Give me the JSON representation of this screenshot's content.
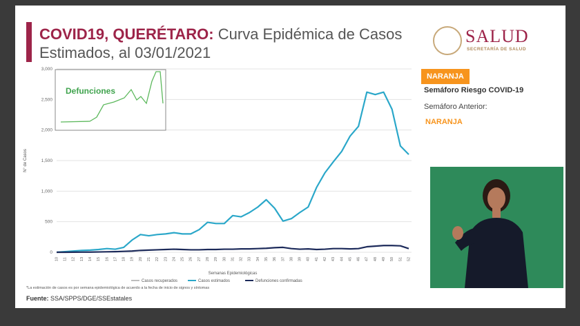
{
  "header": {
    "title_bold": "COVID19, QUERÉTARO:",
    "title_rest": "Curva Epidémica de Casos Estimados, al 03/01/2021",
    "logo_text": "SALUD",
    "logo_sub": "SECRETARÍA DE SALUD"
  },
  "semaforo": {
    "badge": "NARANJA",
    "label": "Semáforo Riesgo COVID-19",
    "previous_label": "Semáforo Anterior:",
    "previous": "NARANJA"
  },
  "chart_data": {
    "type": "line",
    "ylabel": "N° de Casos",
    "xlabel": "Semanas Epidemiológicas",
    "inset_title": "Defunciones",
    "note": "*La estimación de casos es por semana epidemiológica de acuerdo a la fecha de inicio de signos y síntomas",
    "categories": [
      "10",
      "11",
      "12",
      "13",
      "14",
      "15",
      "16",
      "17",
      "18",
      "19",
      "20",
      "21",
      "22",
      "23",
      "24",
      "25",
      "26",
      "27",
      "28",
      "29",
      "30",
      "31",
      "32",
      "33",
      "34",
      "35",
      "36",
      "37",
      "38",
      "39",
      "40",
      "41",
      "42",
      "43",
      "44",
      "45",
      "46",
      "47",
      "48",
      "49",
      "50",
      "51",
      "52"
    ],
    "series": [
      {
        "name": "Casos recuperados",
        "color": "#bdbdbd",
        "values": [
          null,
          null,
          null,
          null,
          null,
          null,
          null,
          null,
          null,
          null,
          null,
          null,
          null,
          null,
          null,
          null,
          null,
          null,
          null,
          null,
          null,
          null,
          null,
          null,
          null,
          null,
          null,
          null,
          null,
          null,
          null,
          null,
          null,
          null,
          null,
          null,
          null,
          null,
          null,
          null,
          null,
          null,
          null
        ]
      },
      {
        "name": "Casos estimados",
        "color": "#2aa7c9",
        "values": [
          0,
          10,
          20,
          30,
          35,
          45,
          60,
          50,
          80,
          200,
          290,
          270,
          290,
          300,
          320,
          300,
          300,
          370,
          490,
          470,
          470,
          600,
          580,
          650,
          740,
          860,
          720,
          510,
          550,
          650,
          740,
          1060,
          1300,
          1480,
          1650,
          1900,
          2060,
          2620,
          2580,
          2620,
          2340,
          1740,
          1600
        ]
      },
      {
        "name": "Defunciones confirmadas",
        "color": "#1c2a5a",
        "values": [
          0,
          0,
          1,
          2,
          3,
          5,
          8,
          10,
          15,
          20,
          30,
          35,
          40,
          45,
          50,
          45,
          40,
          40,
          45,
          45,
          50,
          50,
          55,
          55,
          60,
          65,
          75,
          80,
          60,
          50,
          55,
          45,
          50,
          60,
          60,
          55,
          60,
          90,
          100,
          110,
          110,
          105,
          60
        ]
      }
    ],
    "ylim": [
      0,
      3000
    ],
    "yticks": [
      0,
      500,
      {
        "value": 1000,
        "label": "1,000"
      },
      {
        "value": 1500,
        "label": "1,500"
      },
      {
        "value": 2000,
        "label": "2,000"
      },
      {
        "value": 2500,
        "label": "2,500"
      },
      {
        "value": 3000,
        "label": "3,000"
      }
    ],
    "grid": true
  },
  "footer": {
    "source_label": "Fuente:",
    "source": "SSA/SPPS/DGE/SSEstatales"
  }
}
